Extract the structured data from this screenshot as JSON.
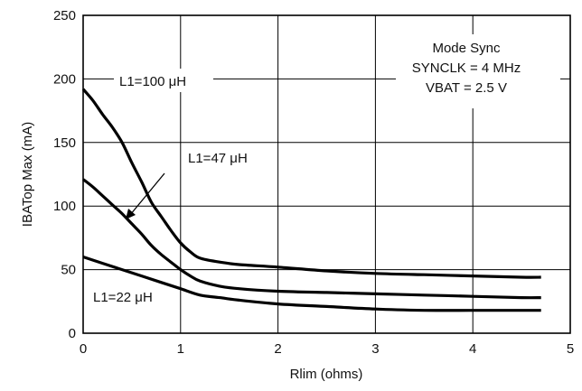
{
  "chart_data": {
    "type": "line",
    "xlabel": "Rlim (ohms)",
    "ylabel": "IBATop Max (mA)",
    "xlim": [
      0,
      5
    ],
    "ylim": [
      0,
      250
    ],
    "x_ticks": [
      "0",
      "1",
      "2",
      "3",
      "4",
      "5"
    ],
    "y_ticks": [
      "0",
      "50",
      "100",
      "150",
      "200",
      "250"
    ],
    "grid": true,
    "series": [
      {
        "name": "L1=100 μH",
        "x": [
          0,
          0.1,
          0.2,
          0.3,
          0.4,
          0.5,
          0.6,
          0.7,
          0.8,
          0.9,
          1.0,
          1.1,
          1.2,
          1.4,
          1.6,
          2.0,
          2.5,
          3.0,
          3.5,
          4.0,
          4.5,
          4.7
        ],
        "y": [
          192,
          183,
          172,
          162,
          150,
          134,
          119,
          103,
          92,
          81,
          71,
          64,
          59,
          56,
          54,
          52,
          49,
          47,
          46,
          45,
          44,
          44
        ]
      },
      {
        "name": "L1=47 μH",
        "x": [
          0,
          0.1,
          0.2,
          0.3,
          0.4,
          0.5,
          0.6,
          0.7,
          0.8,
          0.9,
          1.0,
          1.1,
          1.2,
          1.4,
          1.6,
          2.0,
          2.5,
          3.0,
          3.5,
          4.0,
          4.5,
          4.7
        ],
        "y": [
          121,
          115,
          108,
          101,
          94,
          86,
          78,
          69,
          62,
          56,
          50,
          45,
          41,
          37,
          35,
          33,
          32,
          31,
          30,
          29,
          28,
          28
        ]
      },
      {
        "name": "L1=22 μH",
        "x": [
          0,
          0.2,
          0.4,
          0.6,
          0.8,
          1.0,
          1.2,
          1.4,
          1.6,
          2.0,
          2.5,
          3.0,
          3.5,
          4.0,
          4.5,
          4.7
        ],
        "y": [
          60,
          55,
          50,
          45,
          40,
          35,
          30,
          28,
          26,
          23,
          21,
          19,
          18,
          18,
          18,
          18
        ]
      }
    ],
    "annotations": [
      "Mode Sync",
      "SYNCLK = 4 MHz",
      "VBAT = 2.5 V"
    ]
  }
}
